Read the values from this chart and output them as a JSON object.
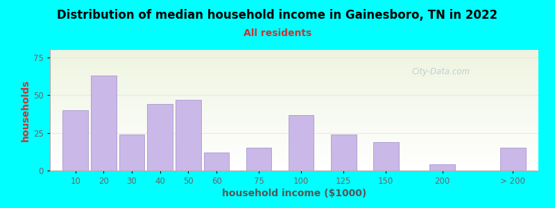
{
  "title": "Distribution of median household income in Gainesboro, TN in 2022",
  "subtitle": "All residents",
  "xlabel": "household income ($1000)",
  "ylabel": "households",
  "background_outer": "#00ffff",
  "bar_color": "#c9b8e8",
  "bar_edge_color": "#b0a0d0",
  "title_fontsize": 12,
  "subtitle_fontsize": 10,
  "subtitle_color": "#cc3333",
  "ylabel_color": "#cc3333",
  "xlabel_color": "#555555",
  "xlabel_fontsize": 10,
  "categories": [
    "10",
    "20",
    "30",
    "40",
    "50",
    "60",
    "75",
    "100",
    "125",
    "150",
    "200",
    "> 200"
  ],
  "values": [
    40,
    63,
    24,
    44,
    47,
    12,
    15,
    37,
    24,
    19,
    4,
    15
  ],
  "bar_positions": [
    0,
    1,
    2,
    3,
    4,
    5,
    6.5,
    8,
    9.5,
    11,
    13,
    15.5
  ],
  "bar_width": 0.9,
  "ylim": [
    0,
    80
  ],
  "yticks": [
    0,
    25,
    50,
    75
  ],
  "watermark": "City-Data.com",
  "plot_bg_top": "#eef4e0",
  "plot_bg_bottom": "#ffffff",
  "grid_color": "#e8ead8",
  "tick_color": "#666666",
  "tick_fontsize": 8.5,
  "spine_color": "#aaaaaa"
}
